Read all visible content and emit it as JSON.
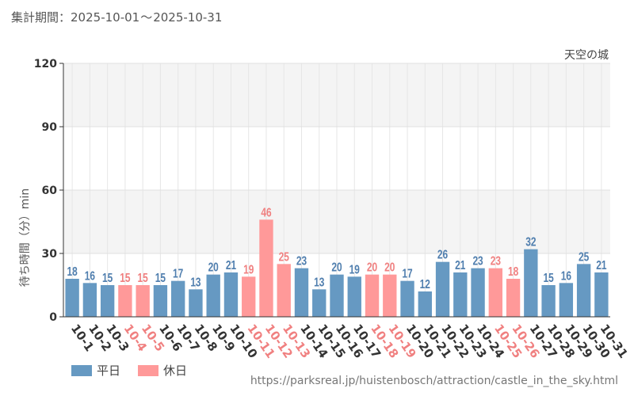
{
  "period": {
    "label": "集計期間：",
    "start": "2025-10-01",
    "separator": "〜",
    "end": "2025-10-31"
  },
  "source_url": "https://parksreal.jp/huistenbosch/attraction/castle_in_the_sky.html",
  "colors": {
    "weekday": "#6699c2",
    "holiday": "#ff9999",
    "weekday_label": "#4f7eae",
    "holiday_label": "#f08080"
  },
  "chart_data": {
    "type": "bar",
    "title": "天空の城",
    "xlabel": "",
    "ylabel": "待ち時間（分）min",
    "ylim": [
      0,
      120
    ],
    "yticks": [
      0,
      30,
      60,
      90,
      120
    ],
    "categories": [
      "10-1",
      "10-2",
      "10-3",
      "10-4",
      "10-5",
      "10-6",
      "10-7",
      "10-8",
      "10-9",
      "10-10",
      "10-11",
      "10-12",
      "10-13",
      "10-14",
      "10-15",
      "10-16",
      "10-17",
      "10-18",
      "10-19",
      "10-20",
      "10-21",
      "10-22",
      "10-23",
      "10-24",
      "10-25",
      "10-26",
      "10-27",
      "10-28",
      "10-29",
      "10-30",
      "10-31"
    ],
    "values": [
      18,
      16,
      15,
      15,
      15,
      15,
      17,
      13,
      20,
      21,
      19,
      46,
      25,
      23,
      13,
      20,
      19,
      20,
      20,
      17,
      12,
      26,
      21,
      23,
      23,
      18,
      32,
      15,
      16,
      25,
      21
    ],
    "day_type": [
      "weekday",
      "weekday",
      "weekday",
      "holiday",
      "holiday",
      "weekday",
      "weekday",
      "weekday",
      "weekday",
      "weekday",
      "holiday",
      "holiday",
      "holiday",
      "weekday",
      "weekday",
      "weekday",
      "weekday",
      "holiday",
      "holiday",
      "weekday",
      "weekday",
      "weekday",
      "weekday",
      "weekday",
      "holiday",
      "holiday",
      "weekday",
      "weekday",
      "weekday",
      "weekday",
      "weekday"
    ],
    "legend": [
      {
        "key": "weekday",
        "label": "平日"
      },
      {
        "key": "holiday",
        "label": "休日"
      }
    ],
    "grid": true
  }
}
